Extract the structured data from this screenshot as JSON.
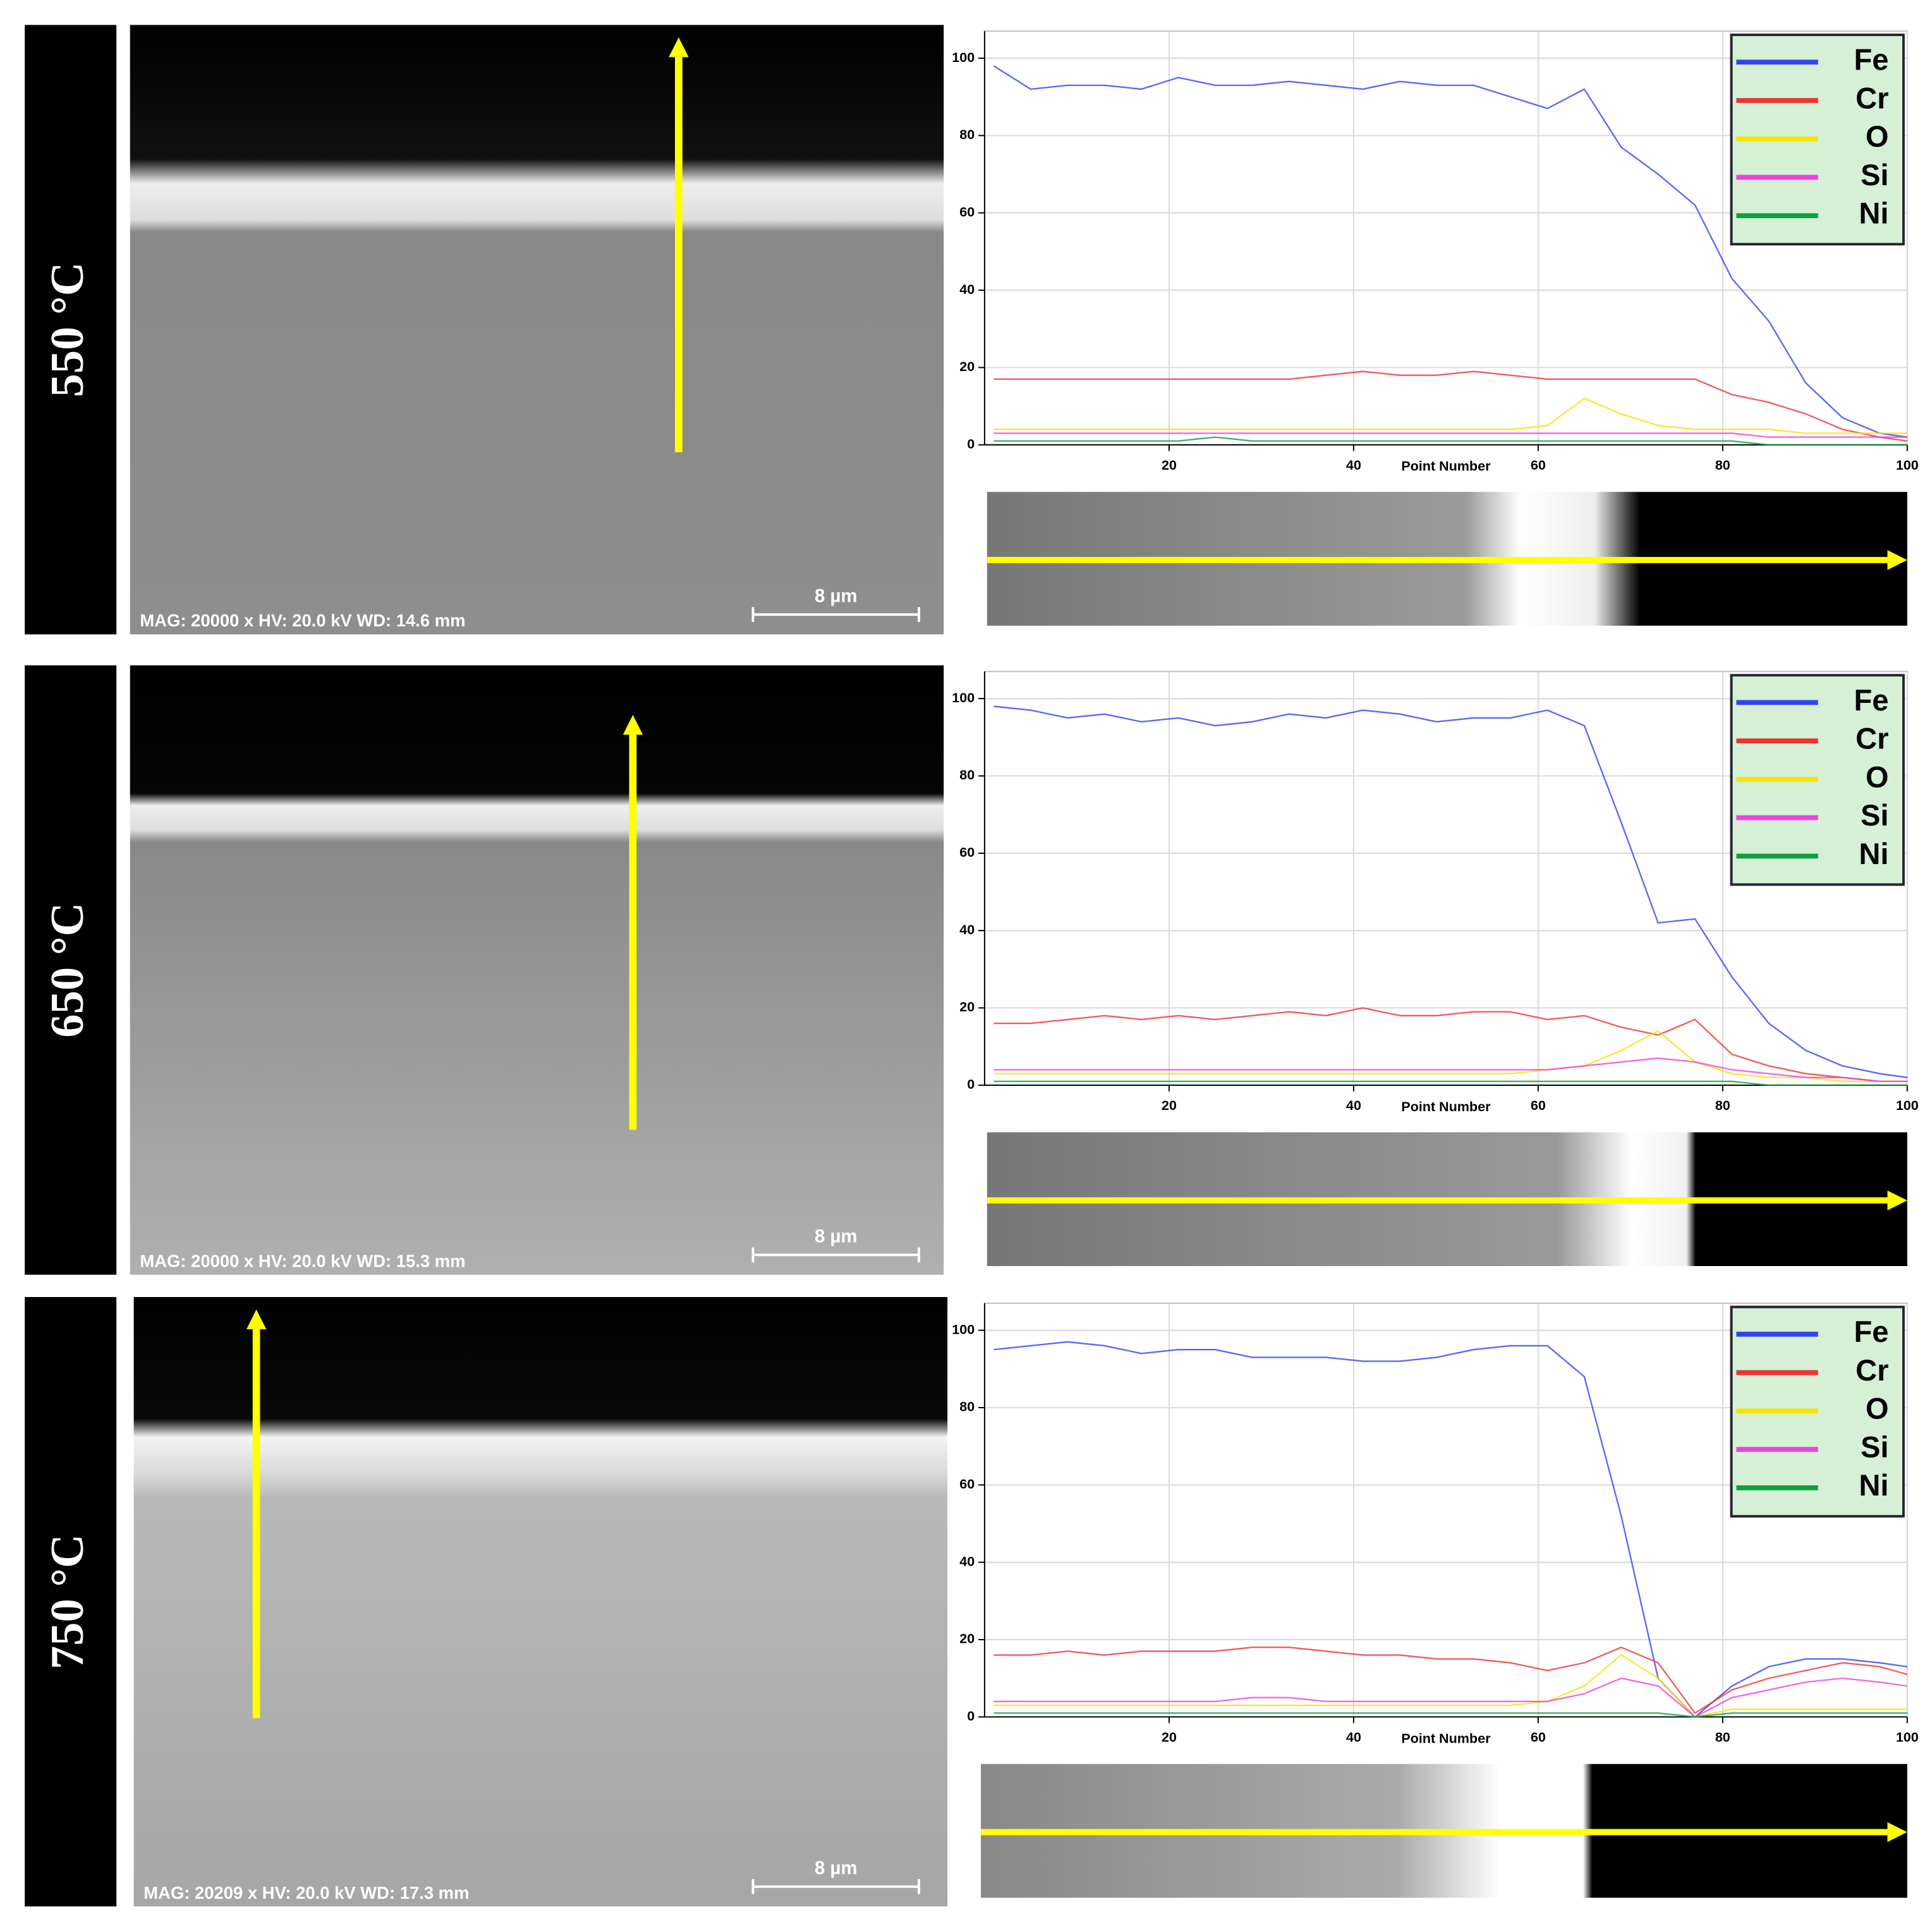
{
  "chart_data": [
    {
      "type": "line",
      "panel_label": "550 °C",
      "image_caption": "MAG: 20000 x  HV: 20.0 kV  WD: 14.6 mm",
      "scale_bar_label": "8 µm",
      "x_label": "Point Number",
      "xlim": [
        0,
        100
      ],
      "ylim": [
        0,
        107
      ],
      "xticks": [
        20,
        40,
        60,
        80,
        100
      ],
      "yticks": [
        0,
        20,
        40,
        60,
        80,
        100
      ],
      "grid": true,
      "legend": "upper right",
      "x": [
        1,
        5,
        9,
        13,
        17,
        21,
        25,
        29,
        33,
        37,
        41,
        45,
        49,
        53,
        57,
        61,
        65,
        69,
        73,
        77,
        81,
        85,
        89,
        93,
        97,
        100
      ],
      "series": [
        {
          "name": "Fe",
          "color": "#3344ee",
          "values": [
            98,
            92,
            93,
            93,
            92,
            95,
            93,
            93,
            94,
            93,
            92,
            94,
            93,
            93,
            90,
            87,
            92,
            77,
            70,
            62,
            43,
            32,
            16,
            7,
            3,
            2
          ]
        },
        {
          "name": "Cr",
          "color": "#ee3333",
          "values": [
            17,
            17,
            17,
            17,
            17,
            17,
            17,
            17,
            17,
            18,
            19,
            18,
            18,
            19,
            18,
            17,
            17,
            17,
            17,
            17,
            13,
            11,
            8,
            4,
            2,
            1
          ]
        },
        {
          "name": "O",
          "color": "#f4e400",
          "values": [
            4,
            4,
            4,
            4,
            4,
            4,
            4,
            4,
            4,
            4,
            4,
            4,
            4,
            4,
            4,
            5,
            12,
            8,
            5,
            4,
            4,
            4,
            3,
            3,
            3,
            3
          ]
        },
        {
          "name": "Si",
          "color": "#f040e0",
          "values": [
            3,
            3,
            3,
            3,
            3,
            3,
            3,
            3,
            3,
            3,
            3,
            3,
            3,
            3,
            3,
            3,
            3,
            3,
            3,
            3,
            3,
            2,
            2,
            2,
            2,
            2
          ]
        },
        {
          "name": "Ni",
          "color": "#10a040",
          "values": [
            1,
            1,
            1,
            1,
            1,
            1,
            2,
            1,
            1,
            1,
            1,
            1,
            1,
            1,
            1,
            1,
            1,
            1,
            1,
            1,
            1,
            0,
            0,
            0,
            0,
            0
          ]
        }
      ]
    },
    {
      "type": "line",
      "panel_label": "650 °C",
      "image_caption": "MAG: 20000 x  HV: 20.0 kV  WD: 15.3 mm",
      "scale_bar_label": "8 µm",
      "x_label": "Point Number",
      "xlim": [
        0,
        100
      ],
      "ylim": [
        0,
        107
      ],
      "xticks": [
        20,
        40,
        60,
        80,
        100
      ],
      "yticks": [
        0,
        20,
        40,
        60,
        80,
        100
      ],
      "grid": true,
      "legend": "upper right",
      "x": [
        1,
        5,
        9,
        13,
        17,
        21,
        25,
        29,
        33,
        37,
        41,
        45,
        49,
        53,
        57,
        61,
        65,
        69,
        73,
        77,
        81,
        85,
        89,
        93,
        97,
        100
      ],
      "series": [
        {
          "name": "Fe",
          "color": "#3344ee",
          "values": [
            98,
            97,
            95,
            96,
            94,
            95,
            93,
            94,
            96,
            95,
            97,
            96,
            94,
            95,
            95,
            97,
            93,
            68,
            42,
            43,
            28,
            16,
            9,
            5,
            3,
            2
          ]
        },
        {
          "name": "Cr",
          "color": "#ee3333",
          "values": [
            16,
            16,
            17,
            18,
            17,
            18,
            17,
            18,
            19,
            18,
            20,
            18,
            18,
            19,
            19,
            17,
            18,
            15,
            13,
            17,
            8,
            5,
            3,
            2,
            1,
            1
          ]
        },
        {
          "name": "O",
          "color": "#f4e400",
          "values": [
            3,
            3,
            3,
            3,
            3,
            3,
            3,
            3,
            3,
            3,
            3,
            3,
            3,
            3,
            3,
            4,
            5,
            9,
            14,
            6,
            3,
            2,
            2,
            1,
            1,
            1
          ]
        },
        {
          "name": "Si",
          "color": "#f040e0",
          "values": [
            4,
            4,
            4,
            4,
            4,
            4,
            4,
            4,
            4,
            4,
            4,
            4,
            4,
            4,
            4,
            4,
            5,
            6,
            7,
            6,
            4,
            3,
            2,
            2,
            1,
            1
          ]
        },
        {
          "name": "Ni",
          "color": "#10a040",
          "values": [
            1,
            1,
            1,
            1,
            1,
            1,
            1,
            1,
            1,
            1,
            1,
            1,
            1,
            1,
            1,
            1,
            1,
            1,
            1,
            1,
            1,
            0,
            0,
            0,
            0,
            0
          ]
        }
      ]
    },
    {
      "type": "line",
      "panel_label": "750 °C",
      "image_caption": "MAG: 20209 x  HV: 20.0 kV  WD: 17.3 mm",
      "scale_bar_label": "8 µm",
      "x_label": "Point Number",
      "xlim": [
        0,
        100
      ],
      "ylim": [
        0,
        107
      ],
      "xticks": [
        20,
        40,
        60,
        80,
        100
      ],
      "yticks": [
        0,
        20,
        40,
        60,
        80,
        100
      ],
      "grid": true,
      "legend": "upper right",
      "x": [
        1,
        5,
        9,
        13,
        17,
        21,
        25,
        29,
        33,
        37,
        41,
        45,
        49,
        53,
        57,
        61,
        65,
        69,
        73,
        77,
        81,
        85,
        89,
        93,
        97,
        100
      ],
      "series": [
        {
          "name": "Fe",
          "color": "#3344ee",
          "values": [
            95,
            96,
            97,
            96,
            94,
            95,
            95,
            93,
            93,
            93,
            92,
            92,
            93,
            95,
            96,
            96,
            88,
            52,
            10,
            0,
            8,
            13,
            15,
            15,
            14,
            13
          ]
        },
        {
          "name": "Cr",
          "color": "#ee3333",
          "values": [
            16,
            16,
            17,
            16,
            17,
            17,
            17,
            18,
            18,
            17,
            16,
            16,
            15,
            15,
            14,
            12,
            14,
            18,
            14,
            1,
            7,
            10,
            12,
            14,
            13,
            11
          ]
        },
        {
          "name": "O",
          "color": "#f4e400",
          "values": [
            3,
            3,
            3,
            3,
            3,
            3,
            3,
            3,
            3,
            3,
            3,
            3,
            3,
            3,
            3,
            4,
            8,
            16,
            10,
            0,
            2,
            2,
            2,
            2,
            2,
            2
          ]
        },
        {
          "name": "Si",
          "color": "#f040e0",
          "values": [
            4,
            4,
            4,
            4,
            4,
            4,
            4,
            5,
            5,
            4,
            4,
            4,
            4,
            4,
            4,
            4,
            6,
            10,
            8,
            0,
            5,
            7,
            9,
            10,
            9,
            8
          ]
        },
        {
          "name": "Ni",
          "color": "#10a040",
          "values": [
            1,
            1,
            1,
            1,
            1,
            1,
            1,
            1,
            1,
            1,
            1,
            1,
            1,
            1,
            1,
            1,
            1,
            1,
            1,
            0,
            1,
            1,
            1,
            1,
            1,
            1
          ]
        }
      ]
    }
  ]
}
